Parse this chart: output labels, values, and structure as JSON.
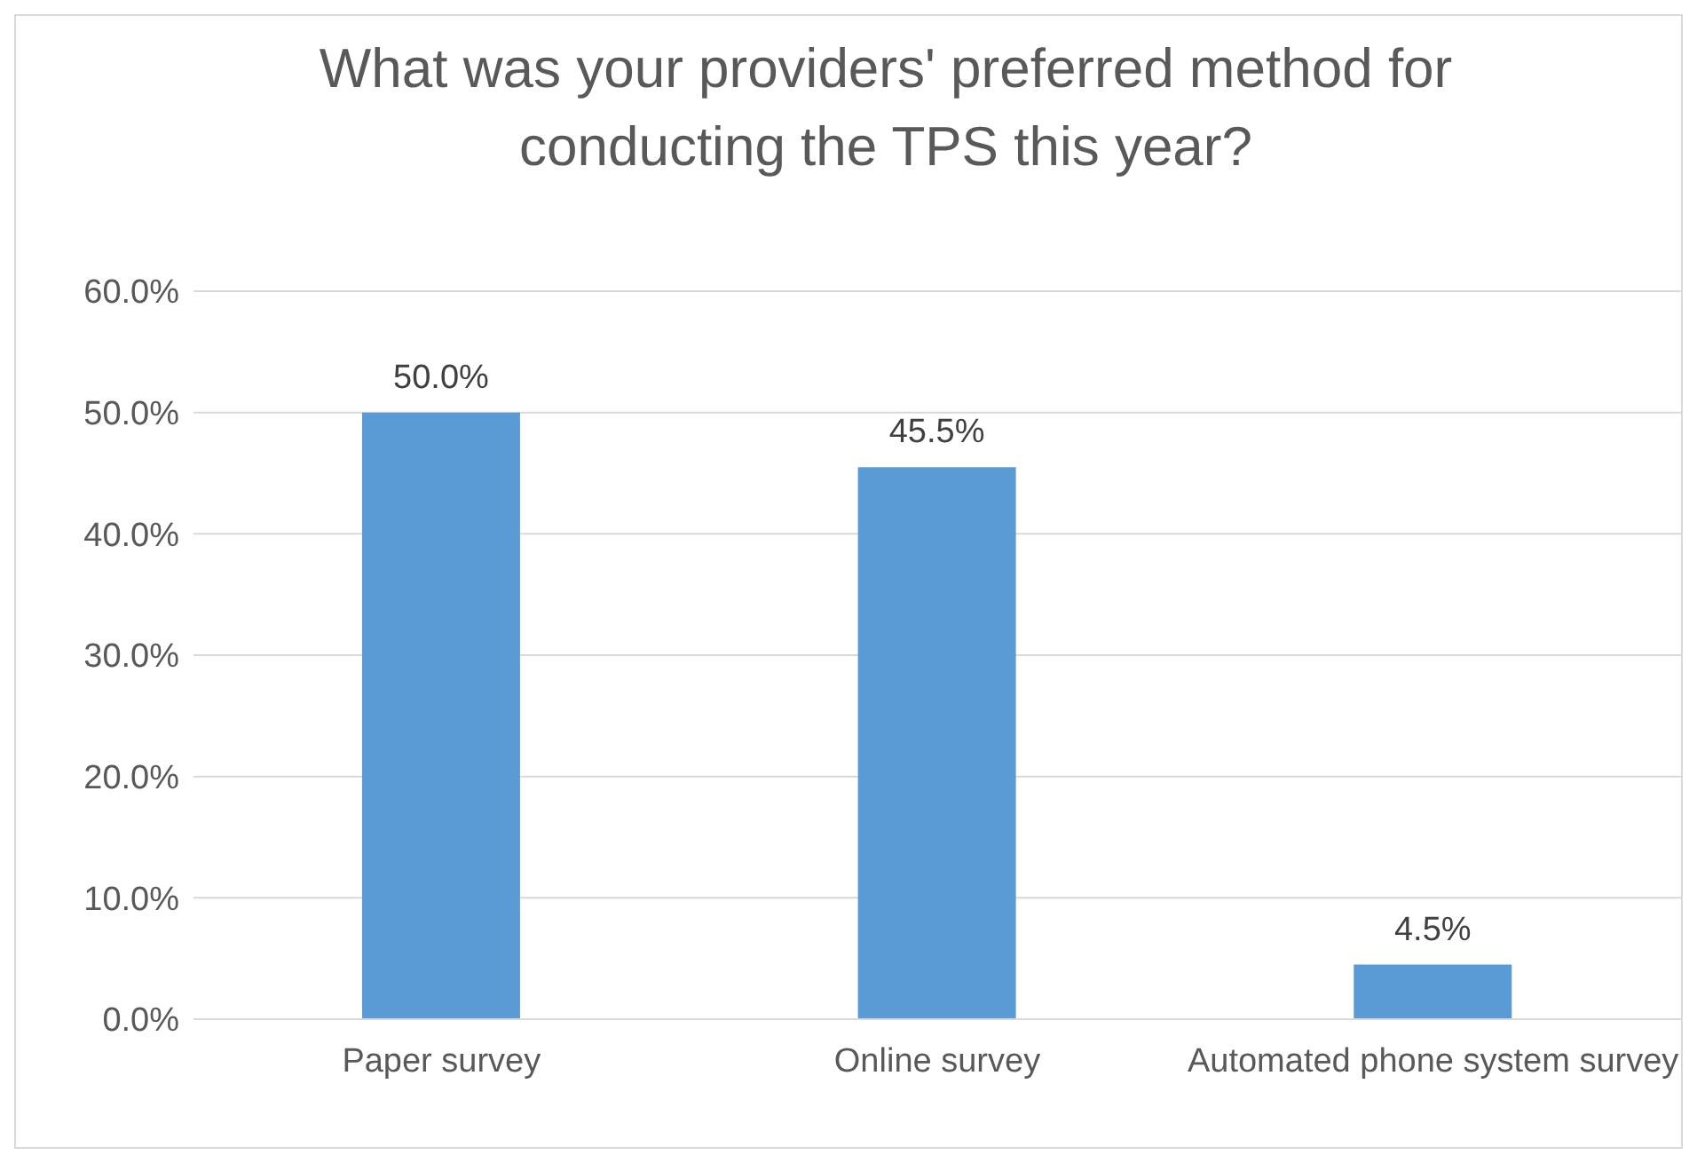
{
  "chart_data": {
    "type": "bar",
    "title": "What was your providers' preferred method for conducting the TPS this year?",
    "categories": [
      "Paper survey",
      "Online survey",
      "Automated phone system survey"
    ],
    "values": [
      50.0,
      45.5,
      4.5
    ],
    "value_labels": [
      "50.0%",
      "45.5%",
      "4.5%"
    ],
    "color": "#5b9bd5",
    "ylim": [
      0,
      60
    ],
    "yticks": [
      {
        "value": 0,
        "label": "0.0%"
      },
      {
        "value": 10,
        "label": "10.0%"
      },
      {
        "value": 20,
        "label": "20.0%"
      },
      {
        "value": 30,
        "label": "30.0%"
      },
      {
        "value": 40,
        "label": "40.0%"
      },
      {
        "value": 50,
        "label": "50.0%"
      },
      {
        "value": 60,
        "label": "60.0%"
      }
    ],
    "grid": "y",
    "legend": false
  }
}
